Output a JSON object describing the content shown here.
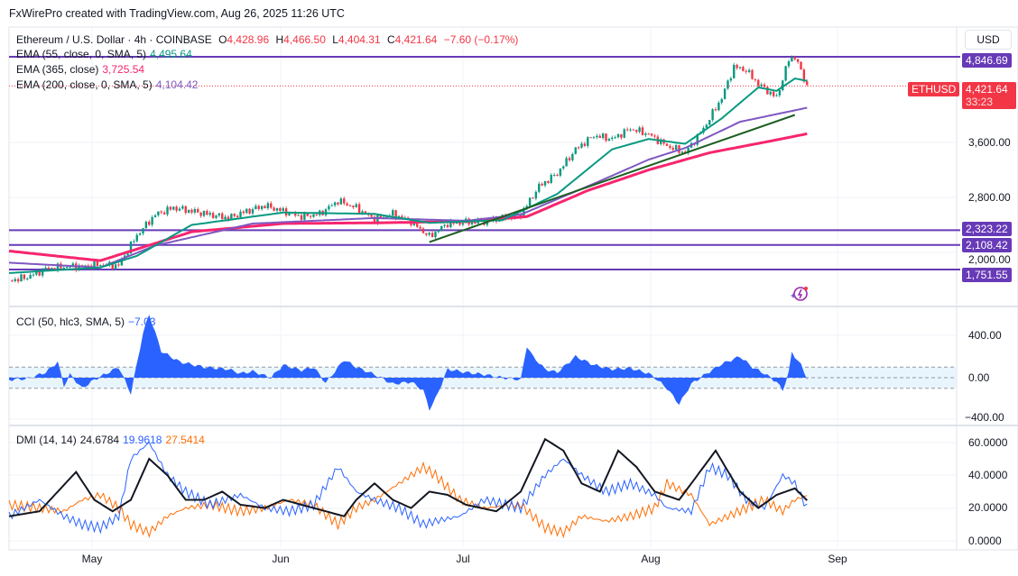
{
  "header": {
    "credit": "FxWirePro created with TradingView.com, Aug 26, 2025 11:26 UTC"
  },
  "symbol": {
    "title": "Ethereum / U.S. Dollar · 4h · COINBASE",
    "o_label": "O",
    "open": "4,428.96",
    "h_label": "H",
    "high": "4,466.50",
    "l_label": "L",
    "low": "4,404.31",
    "c_label": "C",
    "close": "4,421.64",
    "change": "−7.60 (−0.17%)"
  },
  "indicators": {
    "ema55": {
      "label": "EMA (55, close, 0, SMA, 5)",
      "value": "4,495.64"
    },
    "ema365": {
      "label": "EMA (365, close)",
      "value": "3,725.54"
    },
    "ema200": {
      "label": "EMA (200, close, 0, SMA, 5)",
      "value": "4,104.42"
    },
    "cci": {
      "label": "CCI (50, hlc3, SMA, 5)",
      "value": "−7.03"
    },
    "dmi": {
      "label": "DMI (14, 14)",
      "adx": "24.6784",
      "di_plus": "19.9618",
      "di_minus": "27.5414"
    }
  },
  "price_axis": {
    "currency": "USD",
    "ticks": [
      "3,600.00",
      "2,800.00",
      "2,000.00"
    ],
    "levels": [
      "4,846.69",
      "2,323.22",
      "2,108.42",
      "1,751.55"
    ],
    "ticker": "ETHUSD",
    "last": "4,421.64",
    "countdown": "33:23"
  },
  "cci_axis": {
    "ticks": [
      "400.00",
      "0.00",
      "−400.00"
    ]
  },
  "dmi_axis": {
    "ticks": [
      "60.0000",
      "40.0000",
      "20.0000",
      "0.0000"
    ]
  },
  "time_axis": {
    "labels": [
      "May",
      "Jun",
      "Jul",
      "Aug",
      "Sep"
    ]
  },
  "colors": {
    "up": "#089981",
    "down": "#f23645",
    "ema55": "#089981",
    "ema200": "#7e57c2",
    "ema365": "#f7256e",
    "level": "#673ab7",
    "cci": "#2962ff",
    "adx": "#131722",
    "di_plus": "#2962ff",
    "di_minus": "#ff6d00"
  },
  "chart_data": [
    {
      "type": "candlestick",
      "x_unit": "days since Apr 17 2025",
      "ylim": [
        1500,
        5000
      ],
      "close": [
        [
          0,
          1590
        ],
        [
          3,
          1640
        ],
        [
          6,
          1760
        ],
        [
          9,
          1790
        ],
        [
          12,
          1800
        ],
        [
          15,
          1820
        ],
        [
          18,
          1810
        ],
        [
          21,
          2250
        ],
        [
          24,
          2550
        ],
        [
          27,
          2650
        ],
        [
          30,
          2600
        ],
        [
          33,
          2550
        ],
        [
          36,
          2500
        ],
        [
          39,
          2600
        ],
        [
          42,
          2680
        ],
        [
          45,
          2600
        ],
        [
          48,
          2520
        ],
        [
          51,
          2560
        ],
        [
          54,
          2750
        ],
        [
          57,
          2650
        ],
        [
          60,
          2480
        ],
        [
          63,
          2560
        ],
        [
          66,
          2450
        ],
        [
          69,
          2230
        ],
        [
          72,
          2420
        ],
        [
          75,
          2440
        ],
        [
          78,
          2450
        ],
        [
          81,
          2500
        ],
        [
          84,
          2550
        ],
        [
          87,
          2960
        ],
        [
          90,
          3150
        ],
        [
          93,
          3500
        ],
        [
          96,
          3700
        ],
        [
          99,
          3650
        ],
        [
          102,
          3800
        ],
        [
          105,
          3720
        ],
        [
          108,
          3550
        ],
        [
          111,
          3450
        ],
        [
          114,
          3800
        ],
        [
          117,
          4250
        ],
        [
          119,
          4700
        ],
        [
          121,
          4650
        ],
        [
          123,
          4450
        ],
        [
          126,
          4250
        ],
        [
          128,
          4800
        ],
        [
          129,
          4850
        ],
        [
          131,
          4421.64
        ]
      ],
      "ema55": [
        [
          0,
          1700
        ],
        [
          15,
          1780
        ],
        [
          21,
          1950
        ],
        [
          30,
          2400
        ],
        [
          45,
          2580
        ],
        [
          60,
          2560
        ],
        [
          69,
          2430
        ],
        [
          81,
          2470
        ],
        [
          90,
          2850
        ],
        [
          99,
          3500
        ],
        [
          105,
          3650
        ],
        [
          111,
          3580
        ],
        [
          117,
          3950
        ],
        [
          123,
          4400
        ],
        [
          126,
          4350
        ],
        [
          129,
          4530
        ],
        [
          131,
          4495.64
        ]
      ],
      "ema200": [
        [
          0,
          1850
        ],
        [
          15,
          1780
        ],
        [
          24,
          2100
        ],
        [
          40,
          2420
        ],
        [
          60,
          2500
        ],
        [
          75,
          2460
        ],
        [
          84,
          2550
        ],
        [
          96,
          3000
        ],
        [
          105,
          3350
        ],
        [
          111,
          3520
        ],
        [
          120,
          3900
        ],
        [
          131,
          4104.42
        ]
      ],
      "ema365": [
        [
          0,
          2020
        ],
        [
          15,
          1880
        ],
        [
          30,
          2300
        ],
        [
          45,
          2420
        ],
        [
          60,
          2430
        ],
        [
          75,
          2450
        ],
        [
          85,
          2520
        ],
        [
          95,
          2900
        ],
        [
          105,
          3200
        ],
        [
          115,
          3450
        ],
        [
          125,
          3620
        ],
        [
          131,
          3725.54
        ]
      ],
      "trendline": [
        [
          69,
          2150
        ],
        [
          129,
          4000
        ]
      ],
      "levels": [
        4846.69,
        2323.22,
        2108.42,
        1751.55
      ]
    },
    {
      "type": "area",
      "name": "CCI",
      "ylim": [
        -400,
        400
      ],
      "bands": [
        -100,
        100
      ],
      "values": [
        [
          0,
          -20
        ],
        [
          3,
          -10
        ],
        [
          6,
          50
        ],
        [
          8,
          150
        ],
        [
          9,
          -80
        ],
        [
          10,
          30
        ],
        [
          12,
          -100
        ],
        [
          14,
          -20
        ],
        [
          18,
          100
        ],
        [
          20,
          -150
        ],
        [
          22,
          420
        ],
        [
          23,
          600
        ],
        [
          25,
          250
        ],
        [
          28,
          150
        ],
        [
          32,
          100
        ],
        [
          36,
          80
        ],
        [
          38,
          40
        ],
        [
          40,
          60
        ],
        [
          43,
          0
        ],
        [
          45,
          120
        ],
        [
          48,
          70
        ],
        [
          50,
          100
        ],
        [
          52,
          -50
        ],
        [
          55,
          170
        ],
        [
          57,
          100
        ],
        [
          60,
          30
        ],
        [
          63,
          -60
        ],
        [
          66,
          -40
        ],
        [
          68,
          -120
        ],
        [
          69,
          -300
        ],
        [
          70,
          -200
        ],
        [
          72,
          80
        ],
        [
          75,
          50
        ],
        [
          78,
          30
        ],
        [
          81,
          0
        ],
        [
          84,
          -20
        ],
        [
          85,
          300
        ],
        [
          86,
          200
        ],
        [
          88,
          80
        ],
        [
          90,
          50
        ],
        [
          93,
          200
        ],
        [
          96,
          120
        ],
        [
          99,
          80
        ],
        [
          102,
          90
        ],
        [
          105,
          40
        ],
        [
          106,
          0
        ],
        [
          108,
          -100
        ],
        [
          110,
          -250
        ],
        [
          112,
          -60
        ],
        [
          114,
          20
        ],
        [
          117,
          130
        ],
        [
          120,
          200
        ],
        [
          122,
          100
        ],
        [
          124,
          40
        ],
        [
          126,
          -40
        ],
        [
          127,
          -120
        ],
        [
          128,
          50
        ],
        [
          128.5,
          240
        ],
        [
          130,
          120
        ],
        [
          131,
          -7.03
        ]
      ]
    },
    {
      "type": "line",
      "name": "DMI",
      "ylim": [
        0,
        65
      ],
      "series": [
        {
          "name": "ADX",
          "values": [
            [
              0,
              15
            ],
            [
              5,
              18
            ],
            [
              8,
              30
            ],
            [
              11,
              42
            ],
            [
              14,
              25
            ],
            [
              17,
              18
            ],
            [
              20,
              25
            ],
            [
              23,
              50
            ],
            [
              26,
              40
            ],
            [
              29,
              25
            ],
            [
              32,
              25
            ],
            [
              35,
              30
            ],
            [
              38,
              22
            ],
            [
              42,
              20
            ],
            [
              45,
              25
            ],
            [
              50,
              20
            ],
            [
              55,
              15
            ],
            [
              57,
              25
            ],
            [
              60,
              35
            ],
            [
              63,
              25
            ],
            [
              66,
              20
            ],
            [
              69,
              30
            ],
            [
              72,
              28
            ],
            [
              75,
              22
            ],
            [
              80,
              18
            ],
            [
              84,
              30
            ],
            [
              88,
              62
            ],
            [
              91,
              55
            ],
            [
              94,
              35
            ],
            [
              97,
              30
            ],
            [
              100,
              55
            ],
            [
              103,
              45
            ],
            [
              106,
              30
            ],
            [
              110,
              25
            ],
            [
              113,
              40
            ],
            [
              116,
              55
            ],
            [
              120,
              30
            ],
            [
              123,
              20
            ],
            [
              126,
              28
            ],
            [
              129,
              32
            ],
            [
              131,
              24.68
            ]
          ]
        },
        {
          "name": "+DI",
          "values": [
            [
              0,
              15
            ],
            [
              5,
              25
            ],
            [
              9,
              15
            ],
            [
              12,
              10
            ],
            [
              15,
              8
            ],
            [
              18,
              15
            ],
            [
              20,
              50
            ],
            [
              23,
              60
            ],
            [
              26,
              40
            ],
            [
              29,
              30
            ],
            [
              33,
              22
            ],
            [
              38,
              28
            ],
            [
              42,
              20
            ],
            [
              46,
              18
            ],
            [
              50,
              22
            ],
            [
              54,
              45
            ],
            [
              57,
              30
            ],
            [
              60,
              25
            ],
            [
              64,
              20
            ],
            [
              68,
              10
            ],
            [
              70,
              12
            ],
            [
              74,
              15
            ],
            [
              78,
              25
            ],
            [
              84,
              20
            ],
            [
              88,
              40
            ],
            [
              91,
              50
            ],
            [
              94,
              40
            ],
            [
              98,
              30
            ],
            [
              102,
              35
            ],
            [
              106,
              28
            ],
            [
              108,
              20
            ],
            [
              112,
              18
            ],
            [
              115,
              45
            ],
            [
              118,
              40
            ],
            [
              121,
              25
            ],
            [
              124,
              20
            ],
            [
              127,
              40
            ],
            [
              129,
              35
            ],
            [
              131,
              19.96
            ]
          ]
        },
        {
          "name": "-DI",
          "values": [
            [
              0,
              22
            ],
            [
              5,
              20
            ],
            [
              9,
              18
            ],
            [
              12,
              25
            ],
            [
              15,
              28
            ],
            [
              18,
              20
            ],
            [
              20,
              10
            ],
            [
              23,
              5
            ],
            [
              26,
              15
            ],
            [
              29,
              20
            ],
            [
              33,
              22
            ],
            [
              38,
              18
            ],
            [
              42,
              20
            ],
            [
              46,
              25
            ],
            [
              50,
              22
            ],
            [
              54,
              10
            ],
            [
              57,
              20
            ],
            [
              60,
              25
            ],
            [
              64,
              35
            ],
            [
              68,
              45
            ],
            [
              70,
              40
            ],
            [
              74,
              25
            ],
            [
              78,
              20
            ],
            [
              84,
              22
            ],
            [
              88,
              8
            ],
            [
              91,
              5
            ],
            [
              94,
              15
            ],
            [
              98,
              12
            ],
            [
              102,
              15
            ],
            [
              106,
              20
            ],
            [
              108,
              35
            ],
            [
              112,
              28
            ],
            [
              115,
              10
            ],
            [
              118,
              15
            ],
            [
              121,
              20
            ],
            [
              124,
              25
            ],
            [
              127,
              18
            ],
            [
              129,
              25
            ],
            [
              131,
              27.54
            ]
          ]
        }
      ]
    }
  ]
}
